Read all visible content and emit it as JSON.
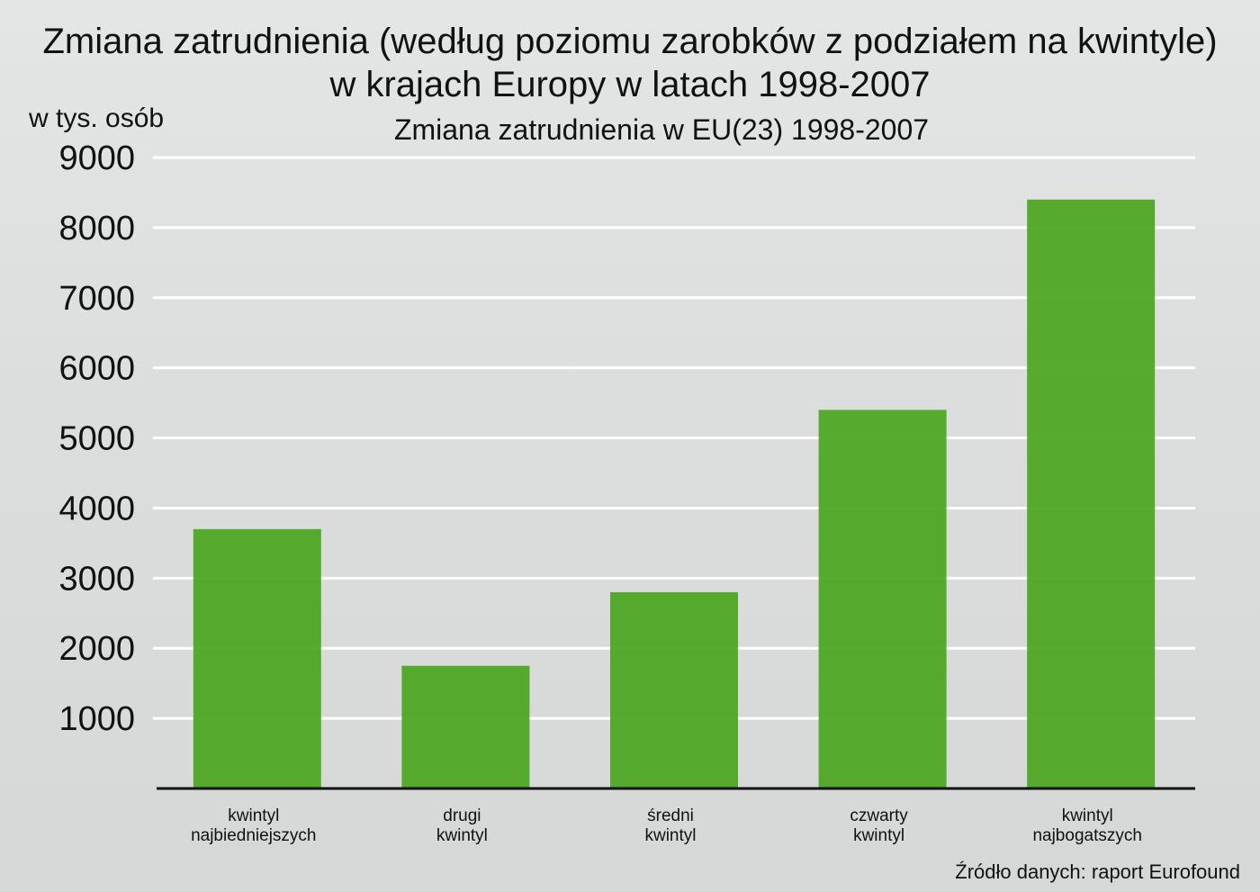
{
  "chart_data": {
    "type": "bar",
    "title_line1": "Zmiana zatrudnienia (według poziomu zarobków z podziałem na kwintyle)",
    "title_line2": "w krajach Europy w latach 1998-2007",
    "subtitle": "Zmiana zatrudnienia w EU(23) 1998-2007",
    "ylabel": "w tys. osób",
    "xlabel": "",
    "ylim": [
      0,
      9000
    ],
    "yticks": [
      "1000",
      "2000",
      "3000",
      "4000",
      "5000",
      "6000",
      "7000",
      "8000",
      "9000"
    ],
    "grid": true,
    "categories": [
      [
        "kwintyl",
        "najbiedniejszych"
      ],
      [
        "drugi",
        "kwintyl"
      ],
      [
        "średni",
        "kwintyl"
      ],
      [
        "czwarty",
        "kwintyl"
      ],
      [
        "kwintyl",
        "najbogatszych"
      ]
    ],
    "values": [
      3700,
      1750,
      2800,
      5400,
      8400
    ],
    "bar_color": "#4aa51e",
    "grid_color": "#ffffff",
    "axis_color": "#111111",
    "source": "Źródło danych: raport Eurofound"
  }
}
